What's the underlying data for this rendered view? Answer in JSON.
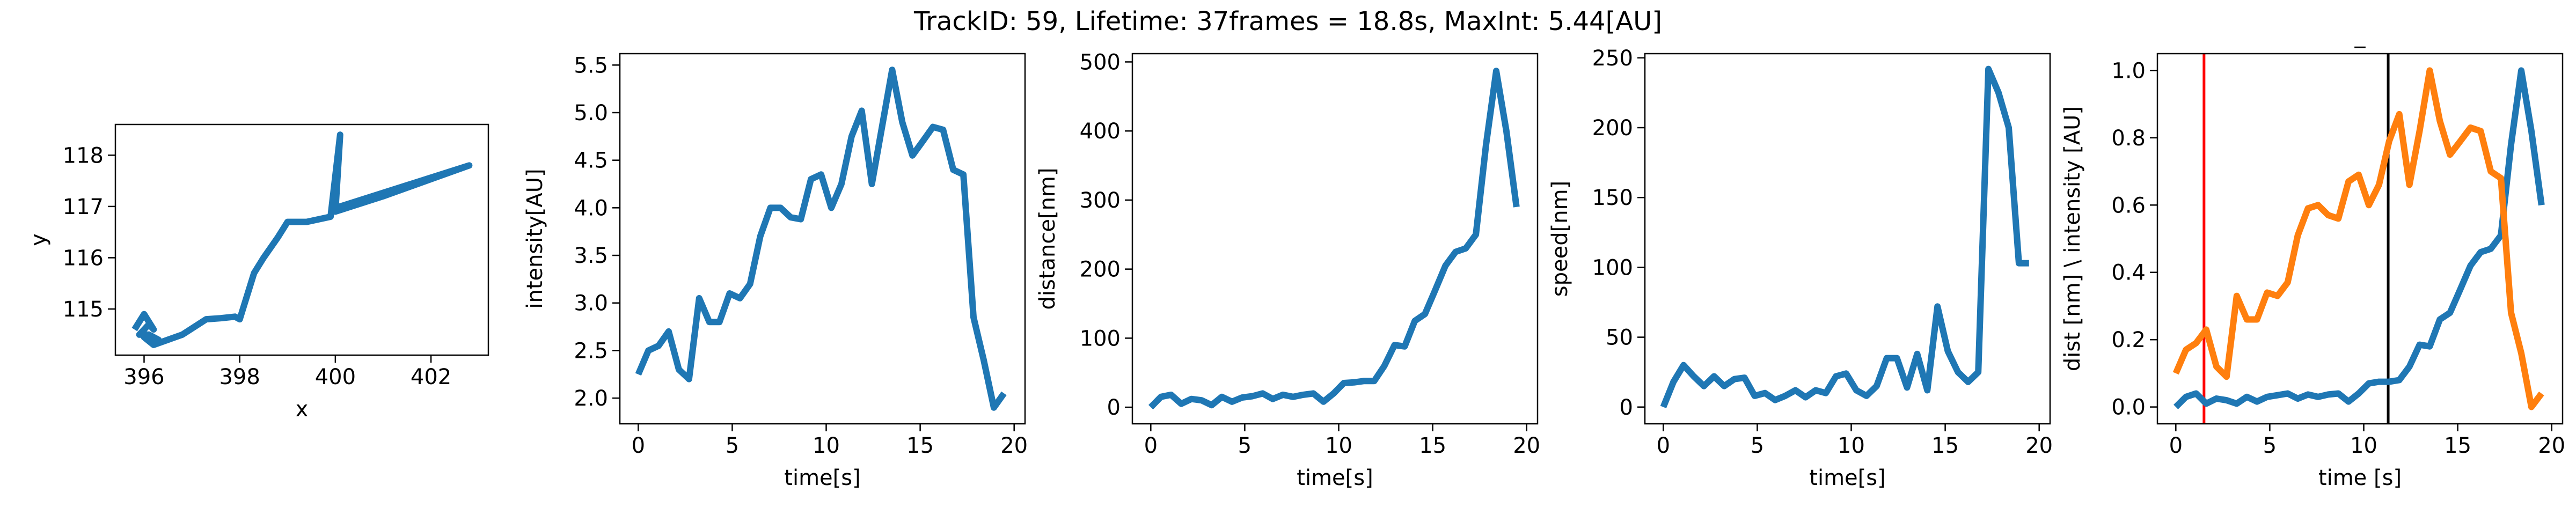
{
  "figure": {
    "suptitle": "TrackID: 59, Lifetime: 37frames = 18.8s, MaxInt: 5.44[AU]"
  },
  "chart_data": [
    {
      "id": "traj",
      "type": "line",
      "title": "",
      "xlabel": "x",
      "ylabel": "y",
      "xlim": [
        395.4,
        403.2
      ],
      "ylim": [
        114.1,
        118.6
      ],
      "xticks": [
        396,
        398,
        400,
        402
      ],
      "yticks": [
        115,
        116,
        117,
        118
      ],
      "grid": false,
      "series": [
        {
          "color": "#1f77b4",
          "x": [
            395.8,
            396.0,
            396.2,
            396.1,
            395.9,
            396.1,
            396.3,
            396.0,
            396.2,
            396.5,
            396.8,
            397.3,
            397.6,
            397.9,
            398.0,
            398.3,
            398.5,
            398.8,
            399.0,
            399.4,
            399.9,
            400.1,
            400.0,
            401.0,
            402.8,
            400.1,
            399.9
          ],
          "y": [
            114.6,
            114.9,
            114.6,
            114.7,
            114.5,
            114.5,
            114.4,
            114.45,
            114.3,
            114.4,
            114.5,
            114.8,
            114.82,
            114.85,
            114.8,
            115.7,
            116.0,
            116.4,
            116.7,
            116.7,
            116.8,
            118.4,
            116.9,
            117.2,
            117.8,
            117.0,
            116.9
          ]
        }
      ]
    },
    {
      "id": "intensity",
      "type": "line",
      "title": "",
      "xlabel": "time[s]",
      "ylabel": "intensity[AU]",
      "xlim": [
        -0.98,
        20.58
      ],
      "ylim": [
        1.73,
        5.62
      ],
      "xticks": [
        0,
        5,
        10,
        15,
        20
      ],
      "yticks": [
        2.0,
        2.5,
        3.0,
        3.5,
        4.0,
        4.5,
        5.0,
        5.5
      ],
      "ytick_labels": [
        "2.0",
        "2.5",
        "3.0",
        "3.5",
        "4.0",
        "4.5",
        "5.0",
        "5.5"
      ],
      "grid": false,
      "series": [
        {
          "color": "#1f77b4",
          "x": [
            0.0,
            0.54,
            1.08,
            1.62,
            2.16,
            2.7,
            3.24,
            3.78,
            4.32,
            4.86,
            5.41,
            5.95,
            6.49,
            7.03,
            7.57,
            8.11,
            8.65,
            9.19,
            9.73,
            10.27,
            10.81,
            11.35,
            11.89,
            12.43,
            12.97,
            13.51,
            14.05,
            14.59,
            15.14,
            15.68,
            16.22,
            16.76,
            17.3,
            17.84,
            18.38,
            18.92,
            19.46
          ],
          "y": [
            2.25,
            2.5,
            2.55,
            2.7,
            2.3,
            2.2,
            3.05,
            2.8,
            2.8,
            3.1,
            3.05,
            3.2,
            3.7,
            4.0,
            4.0,
            3.9,
            3.88,
            4.3,
            4.35,
            4.0,
            4.25,
            4.75,
            5.02,
            4.25,
            4.85,
            5.45,
            4.9,
            4.55,
            4.7,
            4.85,
            4.82,
            4.4,
            4.35,
            2.85,
            2.4,
            1.9,
            2.05
          ]
        }
      ]
    },
    {
      "id": "distance",
      "type": "line",
      "title": "",
      "xlabel": "time[s]",
      "ylabel": "distance[nm]",
      "xlim": [
        -0.98,
        20.58
      ],
      "ylim": [
        -24,
        512
      ],
      "xticks": [
        0,
        5,
        10,
        15,
        20
      ],
      "yticks": [
        0,
        100,
        200,
        300,
        400,
        500
      ],
      "grid": false,
      "series": [
        {
          "color": "#1f77b4",
          "x": [
            0.0,
            0.54,
            1.08,
            1.62,
            2.16,
            2.7,
            3.24,
            3.78,
            4.32,
            4.86,
            5.41,
            5.95,
            6.49,
            7.03,
            7.57,
            8.11,
            8.65,
            9.19,
            9.73,
            10.27,
            10.81,
            11.35,
            11.89,
            12.43,
            12.97,
            13.51,
            14.05,
            14.59,
            15.14,
            15.68,
            16.22,
            16.76,
            17.3,
            17.84,
            18.38,
            18.92,
            19.46
          ],
          "y": [
            0,
            15,
            18,
            5,
            12,
            10,
            3,
            15,
            8,
            14,
            16,
            20,
            12,
            18,
            15,
            18,
            20,
            8,
            20,
            35,
            36,
            38,
            38,
            60,
            90,
            88,
            125,
            135,
            170,
            205,
            225,
            230,
            250,
            380,
            487,
            400,
            290
          ]
        }
      ]
    },
    {
      "id": "speed",
      "type": "line",
      "title": "",
      "xlabel": "time[s]",
      "ylabel": "speed[nm]",
      "xlim": [
        -0.98,
        20.58
      ],
      "ylim": [
        -12,
        253
      ],
      "xticks": [
        0,
        5,
        10,
        15,
        20
      ],
      "yticks": [
        0,
        50,
        100,
        150,
        200,
        250
      ],
      "grid": false,
      "series": [
        {
          "color": "#1f77b4",
          "x": [
            0.0,
            0.54,
            1.08,
            1.62,
            2.16,
            2.7,
            3.24,
            3.78,
            4.32,
            4.86,
            5.41,
            5.95,
            6.49,
            7.03,
            7.57,
            8.11,
            8.65,
            9.19,
            9.73,
            10.27,
            10.81,
            11.35,
            11.89,
            12.43,
            12.97,
            13.51,
            14.05,
            14.59,
            15.14,
            15.68,
            16.22,
            16.76,
            17.3,
            17.84,
            18.38,
            18.92,
            19.46
          ],
          "y": [
            0,
            18,
            30,
            22,
            15,
            22,
            15,
            20,
            21,
            8,
            10,
            5,
            8,
            12,
            7,
            12,
            10,
            22,
            24,
            12,
            8,
            15,
            35,
            35,
            14,
            38,
            12,
            72,
            40,
            25,
            18,
            25,
            242,
            225,
            200,
            103,
            103
          ]
        }
      ]
    },
    {
      "id": "overlay",
      "type": "line",
      "title": "_",
      "xlabel": "time [s]",
      "ylabel": "dist [nm] \\ intensity [AU]",
      "xlim": [
        -0.98,
        20.58
      ],
      "ylim": [
        -0.05,
        1.05
      ],
      "xticks": [
        0,
        5,
        10,
        15,
        20
      ],
      "yticks": [
        0.0,
        0.2,
        0.4,
        0.6,
        0.8,
        1.0
      ],
      "ytick_labels": [
        "0.0",
        "0.2",
        "0.4",
        "0.6",
        "0.8",
        "1.0"
      ],
      "grid": false,
      "vlines": [
        {
          "x": 1.5,
          "color": "#ff0000"
        },
        {
          "x": 11.3,
          "color": "#000000"
        }
      ],
      "series": [
        {
          "color": "#1f77b4",
          "x": [
            0.0,
            0.54,
            1.08,
            1.62,
            2.16,
            2.7,
            3.24,
            3.78,
            4.32,
            4.86,
            5.41,
            5.95,
            6.49,
            7.03,
            7.57,
            8.11,
            8.65,
            9.19,
            9.73,
            10.27,
            10.81,
            11.35,
            11.89,
            12.43,
            12.97,
            13.51,
            14.05,
            14.59,
            15.14,
            15.68,
            16.22,
            16.76,
            17.3,
            17.84,
            18.38,
            18.92,
            19.46
          ],
          "y": [
            0.0,
            0.03,
            0.04,
            0.01,
            0.025,
            0.02,
            0.01,
            0.03,
            0.016,
            0.03,
            0.035,
            0.04,
            0.025,
            0.037,
            0.03,
            0.037,
            0.04,
            0.016,
            0.04,
            0.07,
            0.075,
            0.075,
            0.08,
            0.12,
            0.185,
            0.18,
            0.26,
            0.28,
            0.35,
            0.42,
            0.46,
            0.47,
            0.51,
            0.78,
            1.0,
            0.82,
            0.6
          ]
        },
        {
          "color": "#ff7f0e",
          "x": [
            0.0,
            0.54,
            1.08,
            1.62,
            2.16,
            2.7,
            3.24,
            3.78,
            4.32,
            4.86,
            5.41,
            5.95,
            6.49,
            7.03,
            7.57,
            8.11,
            8.65,
            9.19,
            9.73,
            10.27,
            10.81,
            11.35,
            11.89,
            12.43,
            12.97,
            13.51,
            14.05,
            14.59,
            15.14,
            15.68,
            16.22,
            16.76,
            17.3,
            17.84,
            18.38,
            18.92,
            19.46
          ],
          "y": [
            0.1,
            0.17,
            0.19,
            0.23,
            0.12,
            0.09,
            0.33,
            0.26,
            0.26,
            0.34,
            0.33,
            0.37,
            0.51,
            0.59,
            0.6,
            0.57,
            0.56,
            0.67,
            0.69,
            0.6,
            0.66,
            0.79,
            0.87,
            0.66,
            0.82,
            1.0,
            0.85,
            0.75,
            0.79,
            0.83,
            0.82,
            0.7,
            0.68,
            0.28,
            0.16,
            0.0,
            0.04
          ]
        }
      ]
    }
  ]
}
